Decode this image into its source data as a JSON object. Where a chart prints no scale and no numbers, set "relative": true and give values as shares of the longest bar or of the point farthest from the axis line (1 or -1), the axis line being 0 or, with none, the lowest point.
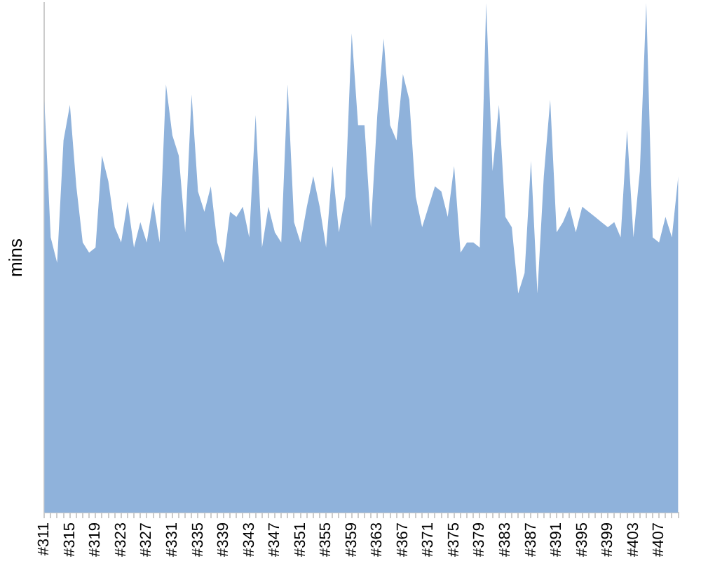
{
  "chart_data": {
    "type": "area",
    "ylabel": "mins",
    "relative": true,
    "color": "#8fb2db",
    "categories": [
      "#311",
      null,
      null,
      null,
      "#315",
      null,
      null,
      null,
      "#319",
      null,
      null,
      null,
      "#323",
      null,
      null,
      null,
      "#327",
      null,
      null,
      null,
      "#331",
      null,
      null,
      null,
      "#335",
      null,
      null,
      null,
      "#339",
      null,
      null,
      null,
      "#343",
      null,
      null,
      null,
      "#347",
      null,
      null,
      null,
      "#351",
      null,
      null,
      null,
      "#355",
      null,
      null,
      null,
      "#359",
      null,
      null,
      null,
      "#363",
      null,
      null,
      null,
      "#367",
      null,
      null,
      null,
      "#371",
      null,
      null,
      null,
      "#375",
      null,
      null,
      null,
      "#379",
      null,
      null,
      null,
      "#383",
      null,
      null,
      null,
      "#387",
      null,
      null,
      null,
      "#391",
      null,
      null,
      null,
      "#395",
      null,
      null,
      null,
      "#399",
      null,
      null,
      null,
      "#403",
      null,
      null,
      null,
      "#407",
      null,
      null,
      null
    ],
    "values": [
      0.81,
      0.54,
      0.49,
      0.73,
      0.8,
      0.64,
      0.53,
      0.51,
      0.52,
      0.7,
      0.65,
      0.56,
      0.53,
      0.61,
      0.52,
      0.57,
      0.53,
      0.61,
      0.53,
      0.84,
      0.74,
      0.7,
      0.55,
      0.82,
      0.63,
      0.59,
      0.64,
      0.53,
      0.49,
      0.59,
      0.58,
      0.6,
      0.54,
      0.78,
      0.52,
      0.6,
      0.55,
      0.53,
      0.84,
      0.57,
      0.53,
      0.6,
      0.66,
      0.6,
      0.52,
      0.68,
      0.55,
      0.62,
      0.94,
      0.76,
      0.76,
      0.56,
      0.78,
      0.93,
      0.76,
      0.73,
      0.86,
      0.81,
      0.62,
      0.56,
      0.6,
      0.64,
      0.63,
      0.58,
      0.68,
      0.51,
      0.53,
      0.53,
      0.52,
      1,
      0.67,
      0.8,
      0.58,
      0.56,
      0.43,
      0.47,
      0.69,
      0.43,
      0.66,
      0.81,
      0.55,
      0.57,
      0.6,
      0.55,
      0.6,
      0.59,
      0.58,
      0.57,
      0.56,
      0.57,
      0.54,
      0.75,
      0.54,
      0.67,
      1,
      0.54,
      0.53,
      0.58,
      0.54,
      0.66
    ]
  }
}
